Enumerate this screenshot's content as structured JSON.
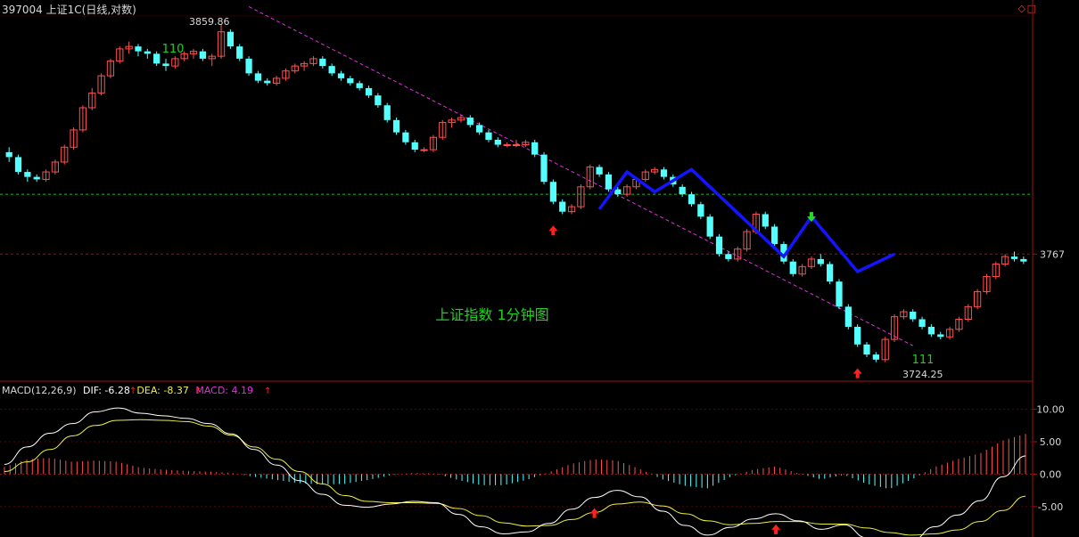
{
  "header": {
    "title": "397004 上证1C(日线,对数)"
  },
  "window_buttons": {
    "restore_icon": "diamond",
    "maximize_icon": "square"
  },
  "macd_header": {
    "name": "MACD(12,26,9)",
    "dif": "DIF: -6.28",
    "dea": "DEA: -8.37",
    "macd": "MACD: 4.19"
  },
  "colors": {
    "up": "#ff5050",
    "down": "#54ffff",
    "wave": "#1414ff",
    "trend": "#e030e0",
    "dif": "#ffffff",
    "dea": "#f0f040",
    "macd_label": "#e030e0",
    "green_text": "#20d020"
  },
  "chart_data": [
    {
      "type": "candlestick",
      "title": "",
      "log_scale": true,
      "right_axis_label": "3767",
      "annotations": [
        {
          "text": "上证指数 1分钟图"
        },
        {
          "text": "110"
        },
        {
          "text": "111"
        },
        {
          "text": "3859.86"
        },
        {
          "text": "3724.25"
        }
      ],
      "reference_levels": [
        3791,
        3767
      ],
      "ohlc": [
        [
          3808,
          3810,
          3804,
          3806
        ],
        [
          3806,
          3807,
          3799,
          3800
        ],
        [
          3800,
          3801,
          3796,
          3798
        ],
        [
          3798,
          3799,
          3796,
          3797
        ],
        [
          3797,
          3801,
          3796,
          3800
        ],
        [
          3800,
          3805,
          3799,
          3804
        ],
        [
          3804,
          3811,
          3803,
          3810
        ],
        [
          3810,
          3818,
          3809,
          3817
        ],
        [
          3817,
          3827,
          3816,
          3826
        ],
        [
          3826,
          3834,
          3825,
          3832
        ],
        [
          3832,
          3840,
          3831,
          3839
        ],
        [
          3839,
          3846,
          3838,
          3845
        ],
        [
          3845,
          3851,
          3844,
          3850
        ],
        [
          3850,
          3853,
          3848,
          3851
        ],
        [
          3851,
          3852,
          3847,
          3849
        ],
        [
          3849,
          3850,
          3846,
          3848
        ],
        [
          3848,
          3849,
          3843,
          3844
        ],
        [
          3844,
          3846,
          3841,
          3843
        ],
        [
          3843,
          3847,
          3842,
          3846
        ],
        [
          3846,
          3849,
          3845,
          3848
        ],
        [
          3848,
          3850,
          3846,
          3849
        ],
        [
          3849,
          3850,
          3845,
          3846
        ],
        [
          3846,
          3848,
          3843,
          3847
        ],
        [
          3847,
          3860,
          3846,
          3857
        ],
        [
          3857,
          3858,
          3850,
          3851
        ],
        [
          3851,
          3852,
          3845,
          3846
        ],
        [
          3846,
          3847,
          3839,
          3840
        ],
        [
          3840,
          3841,
          3836,
          3837
        ],
        [
          3837,
          3838,
          3835,
          3836
        ],
        [
          3836,
          3839,
          3835,
          3838
        ],
        [
          3838,
          3842,
          3837,
          3841
        ],
        [
          3841,
          3844,
          3840,
          3843
        ],
        [
          3843,
          3845,
          3841,
          3844
        ],
        [
          3844,
          3847,
          3843,
          3846
        ],
        [
          3846,
          3847,
          3842,
          3843
        ],
        [
          3843,
          3844,
          3839,
          3840
        ],
        [
          3840,
          3841,
          3837,
          3838
        ],
        [
          3838,
          3839,
          3835,
          3836
        ],
        [
          3836,
          3837,
          3833,
          3834
        ],
        [
          3834,
          3835,
          3830,
          3831
        ],
        [
          3831,
          3832,
          3826,
          3827
        ],
        [
          3827,
          3828,
          3820,
          3821
        ],
        [
          3821,
          3822,
          3815,
          3816
        ],
        [
          3816,
          3817,
          3811,
          3812
        ],
        [
          3812,
          3813,
          3808,
          3809
        ],
        [
          3809,
          3810,
          3808,
          3809
        ],
        [
          3809,
          3815,
          3808,
          3814
        ],
        [
          3814,
          3821,
          3813,
          3820
        ],
        [
          3820,
          3822,
          3818,
          3821
        ],
        [
          3821,
          3823,
          3820,
          3822
        ],
        [
          3822,
          3823,
          3818,
          3819
        ],
        [
          3819,
          3820,
          3815,
          3816
        ],
        [
          3816,
          3817,
          3812,
          3813
        ],
        [
          3813,
          3814,
          3810,
          3811
        ],
        [
          3811,
          3812,
          3810,
          3811
        ],
        [
          3811,
          3813,
          3810,
          3811
        ],
        [
          3811,
          3813,
          3810,
          3812
        ],
        [
          3812,
          3813,
          3806,
          3807
        ],
        [
          3807,
          3808,
          3795,
          3796
        ],
        [
          3796,
          3797,
          3787,
          3788
        ],
        [
          3788,
          3789,
          3783,
          3784
        ],
        [
          3784,
          3787,
          3783,
          3786
        ],
        [
          3786,
          3795,
          3785,
          3794
        ],
        [
          3794,
          3803,
          3793,
          3802
        ],
        [
          3802,
          3803,
          3798,
          3799
        ],
        [
          3799,
          3800,
          3792,
          3793
        ],
        [
          3793,
          3794,
          3790,
          3791
        ],
        [
          3791,
          3795,
          3790,
          3794
        ],
        [
          3794,
          3798,
          3793,
          3797
        ],
        [
          3797,
          3801,
          3796,
          3800
        ],
        [
          3800,
          3802,
          3799,
          3801
        ],
        [
          3801,
          3802,
          3797,
          3798
        ],
        [
          3798,
          3799,
          3794,
          3795
        ],
        [
          3794,
          3795,
          3790,
          3791
        ],
        [
          3791,
          3792,
          3786,
          3787
        ],
        [
          3787,
          3788,
          3781,
          3782
        ],
        [
          3782,
          3783,
          3773,
          3774
        ],
        [
          3774,
          3775,
          3766,
          3767
        ],
        [
          3767,
          3768,
          3764,
          3765
        ],
        [
          3765,
          3770,
          3764,
          3769
        ],
        [
          3769,
          3777,
          3768,
          3776
        ],
        [
          3776,
          3784,
          3775,
          3783
        ],
        [
          3783,
          3784,
          3777,
          3778
        ],
        [
          3778,
          3779,
          3770,
          3771
        ],
        [
          3771,
          3772,
          3763,
          3764
        ],
        [
          3764,
          3765,
          3758,
          3759
        ],
        [
          3759,
          3763,
          3758,
          3762
        ],
        [
          3762,
          3766,
          3761,
          3765
        ],
        [
          3765,
          3767,
          3762,
          3763
        ],
        [
          3763,
          3764,
          3755,
          3756
        ],
        [
          3756,
          3757,
          3745,
          3746
        ],
        [
          3746,
          3747,
          3737,
          3738
        ],
        [
          3738,
          3739,
          3730,
          3731
        ],
        [
          3731,
          3732,
          3726,
          3727
        ],
        [
          3727,
          3728,
          3724,
          3725
        ],
        [
          3725,
          3734,
          3724,
          3733
        ],
        [
          3733,
          3743,
          3732,
          3742
        ],
        [
          3742,
          3745,
          3741,
          3744
        ],
        [
          3744,
          3745,
          3740,
          3741
        ],
        [
          3741,
          3742,
          3737,
          3738
        ],
        [
          3738,
          3739,
          3734,
          3735
        ],
        [
          3735,
          3736,
          3733,
          3734
        ],
        [
          3734,
          3738,
          3733,
          3737
        ],
        [
          3737,
          3742,
          3736,
          3741
        ],
        [
          3741,
          3747,
          3740,
          3746
        ],
        [
          3746,
          3753,
          3745,
          3752
        ],
        [
          3752,
          3759,
          3751,
          3758
        ],
        [
          3758,
          3764,
          3757,
          3763
        ],
        [
          3763,
          3767,
          3762,
          3766
        ],
        [
          3766,
          3768,
          3764,
          3765
        ],
        [
          3765,
          3766,
          3763,
          3764
        ]
      ],
      "wave_pivots": [
        {
          "bar": 64,
          "price": 3785
        },
        {
          "bar": 67,
          "price": 3800
        },
        {
          "bar": 70,
          "price": 3792
        },
        {
          "bar": 74,
          "price": 3801
        },
        {
          "bar": 84,
          "price": 3766
        },
        {
          "bar": 87,
          "price": 3782
        },
        {
          "bar": 92,
          "price": 3760
        },
        {
          "bar": 96,
          "price": 3767
        }
      ],
      "trendline": [
        {
          "bar": 26,
          "price": 3860
        },
        {
          "bar": 98,
          "price": 3727
        }
      ],
      "arrows": [
        {
          "bar": 59,
          "direction": "up"
        },
        {
          "bar": 87,
          "direction": "down"
        },
        {
          "bar": 92,
          "direction": "up"
        }
      ]
    },
    {
      "type": "macd",
      "title": "MACD(12,26,9)",
      "ylim": [
        -9,
        12
      ],
      "ytick_labels": [
        "10.00",
        "5.00",
        "0.00",
        "-5.00"
      ],
      "dif": [
        1.5,
        4.2,
        6.3,
        7.8,
        9.6,
        10.2,
        9.4,
        9.0,
        8.6,
        7.8,
        6.2,
        3.8,
        1.4,
        -1.0,
        -3.1,
        -4.8,
        -5.1,
        -4.6,
        -4.2,
        -4.4,
        -6.2,
        -8.1,
        -9.2,
        -8.9,
        -7.6,
        -5.4,
        -3.6,
        -2.5,
        -3.5,
        -5.7,
        -7.9,
        -9.4,
        -8.2,
        -6.9,
        -6.1,
        -7.2,
        -8.5,
        -7.8,
        -9.8,
        -11.3,
        -10.2,
        -8.1,
        -6.3,
        -4.1,
        -0.4,
        2.8
      ],
      "dea": [
        0.4,
        1.9,
        3.8,
        5.9,
        7.5,
        8.3,
        8.4,
        8.3,
        8.1,
        7.4,
        6.0,
        4.2,
        2.3,
        0.4,
        -1.5,
        -3.3,
        -4.2,
        -4.4,
        -4.4,
        -4.5,
        -5.3,
        -6.4,
        -7.5,
        -8.0,
        -7.9,
        -7.0,
        -5.9,
        -4.6,
        -4.3,
        -4.9,
        -6.1,
        -7.2,
        -7.8,
        -7.6,
        -7.3,
        -7.3,
        -7.7,
        -7.7,
        -8.3,
        -9.0,
        -9.4,
        -9.2,
        -8.6,
        -7.3,
        -5.6,
        -3.4
      ],
      "macd": [
        1.1,
        2.3,
        2.5,
        1.9,
        2.1,
        1.9,
        1.0,
        0.7,
        0.5,
        0.4,
        0.2,
        -0.4,
        -0.9,
        -1.4,
        -1.6,
        -1.5,
        -0.9,
        -0.2,
        0.2,
        0.1,
        -0.9,
        -1.7,
        -1.7,
        -0.9,
        0.3,
        1.6,
        2.3,
        2.1,
        0.8,
        -0.8,
        -1.8,
        -2.2,
        -0.4,
        0.7,
        1.2,
        0.1,
        -0.8,
        -0.1,
        -1.5,
        -2.3,
        -0.8,
        1.1,
        2.3,
        3.2,
        5.2,
        6.2
      ],
      "arrows": [
        {
          "index": 26,
          "direction": "up"
        },
        {
          "index": 34,
          "direction": "up"
        }
      ]
    }
  ]
}
